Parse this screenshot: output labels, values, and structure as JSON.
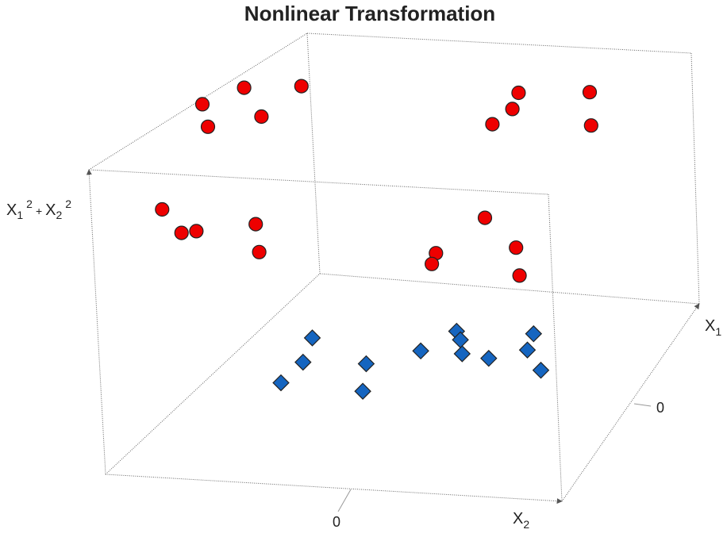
{
  "chart_data": {
    "type": "scatter",
    "projection": "3d",
    "title": "Nonlinear Transformation",
    "axes": {
      "z": {
        "label": "X",
        "sub1": "1",
        "sup1": "2",
        "plus": "+",
        "label2": "X",
        "sub2": "2",
        "sup2": "2"
      },
      "x1": {
        "label": "X",
        "sub": "1",
        "tick": "0"
      },
      "x2": {
        "label": "X",
        "sub": "2",
        "tick": "0"
      }
    },
    "grid": false,
    "series": [
      {
        "marker": "circle",
        "color": "#ee0000",
        "points": [
          [
            -3.2,
            2.6,
            1
          ],
          [
            -2.2,
            2.4,
            1
          ],
          [
            -2.6,
            1.3,
            1
          ],
          [
            -3.0,
            1.3,
            1
          ],
          [
            -1.2,
            1.8,
            1
          ],
          [
            2.4,
            2.8,
            1
          ],
          [
            3.6,
            2.6,
            1
          ],
          [
            2.8,
            1.6,
            1
          ],
          [
            3.4,
            1.6,
            1
          ],
          [
            2.2,
            1.4,
            1
          ],
          [
            -3.0,
            -1.2,
            1
          ],
          [
            -2.0,
            -1.4,
            1
          ],
          [
            -2.5,
            -2.4,
            1
          ],
          [
            -2.4,
            -2.2,
            1
          ],
          [
            -1.7,
            -2.8,
            1
          ],
          [
            1.4,
            -2.6,
            1
          ],
          [
            2.2,
            -2.8,
            1
          ],
          [
            2.9,
            -2.3,
            1
          ],
          [
            3.1,
            -1.5,
            1
          ],
          [
            1.9,
            -1.9,
            1
          ]
        ]
      },
      {
        "marker": "diamond",
        "color": "#1565c0",
        "points": [
          [
            -1.3,
            0.0,
            0
          ],
          [
            -1.2,
            -1.2,
            0
          ],
          [
            -0.4,
            -1.0,
            0
          ],
          [
            0.5,
            -1.0,
            0
          ],
          [
            -0.3,
            -0.1,
            0
          ],
          [
            0.3,
            0.6,
            0
          ],
          [
            0.3,
            1.2,
            0
          ],
          [
            1.1,
            1.0,
            0
          ],
          [
            0.2,
            1.6,
            0
          ],
          [
            0.8,
            1.1,
            0
          ],
          [
            1.2,
            2.1,
            0
          ],
          [
            0.6,
            2.1,
            0
          ],
          [
            -0.1,
            2.4,
            0
          ]
        ]
      }
    ]
  }
}
